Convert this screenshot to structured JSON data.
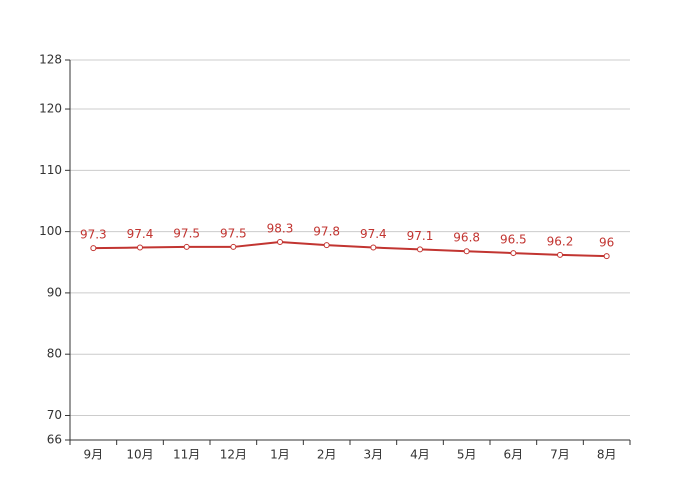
{
  "chart_data": {
    "type": "line",
    "categories": [
      "9月",
      "10月",
      "11月",
      "12月",
      "1月",
      "2月",
      "3月",
      "4月",
      "5月",
      "6月",
      "7月",
      "8月"
    ],
    "values": [
      97.3,
      97.4,
      97.5,
      97.5,
      98.3,
      97.8,
      97.4,
      97.1,
      96.8,
      96.5,
      96.2,
      96
    ],
    "color": "#c23531",
    "ylim": [
      66,
      128
    ],
    "yticks": [
      66,
      70,
      80,
      90,
      100,
      110,
      120,
      128
    ],
    "grid": true
  }
}
